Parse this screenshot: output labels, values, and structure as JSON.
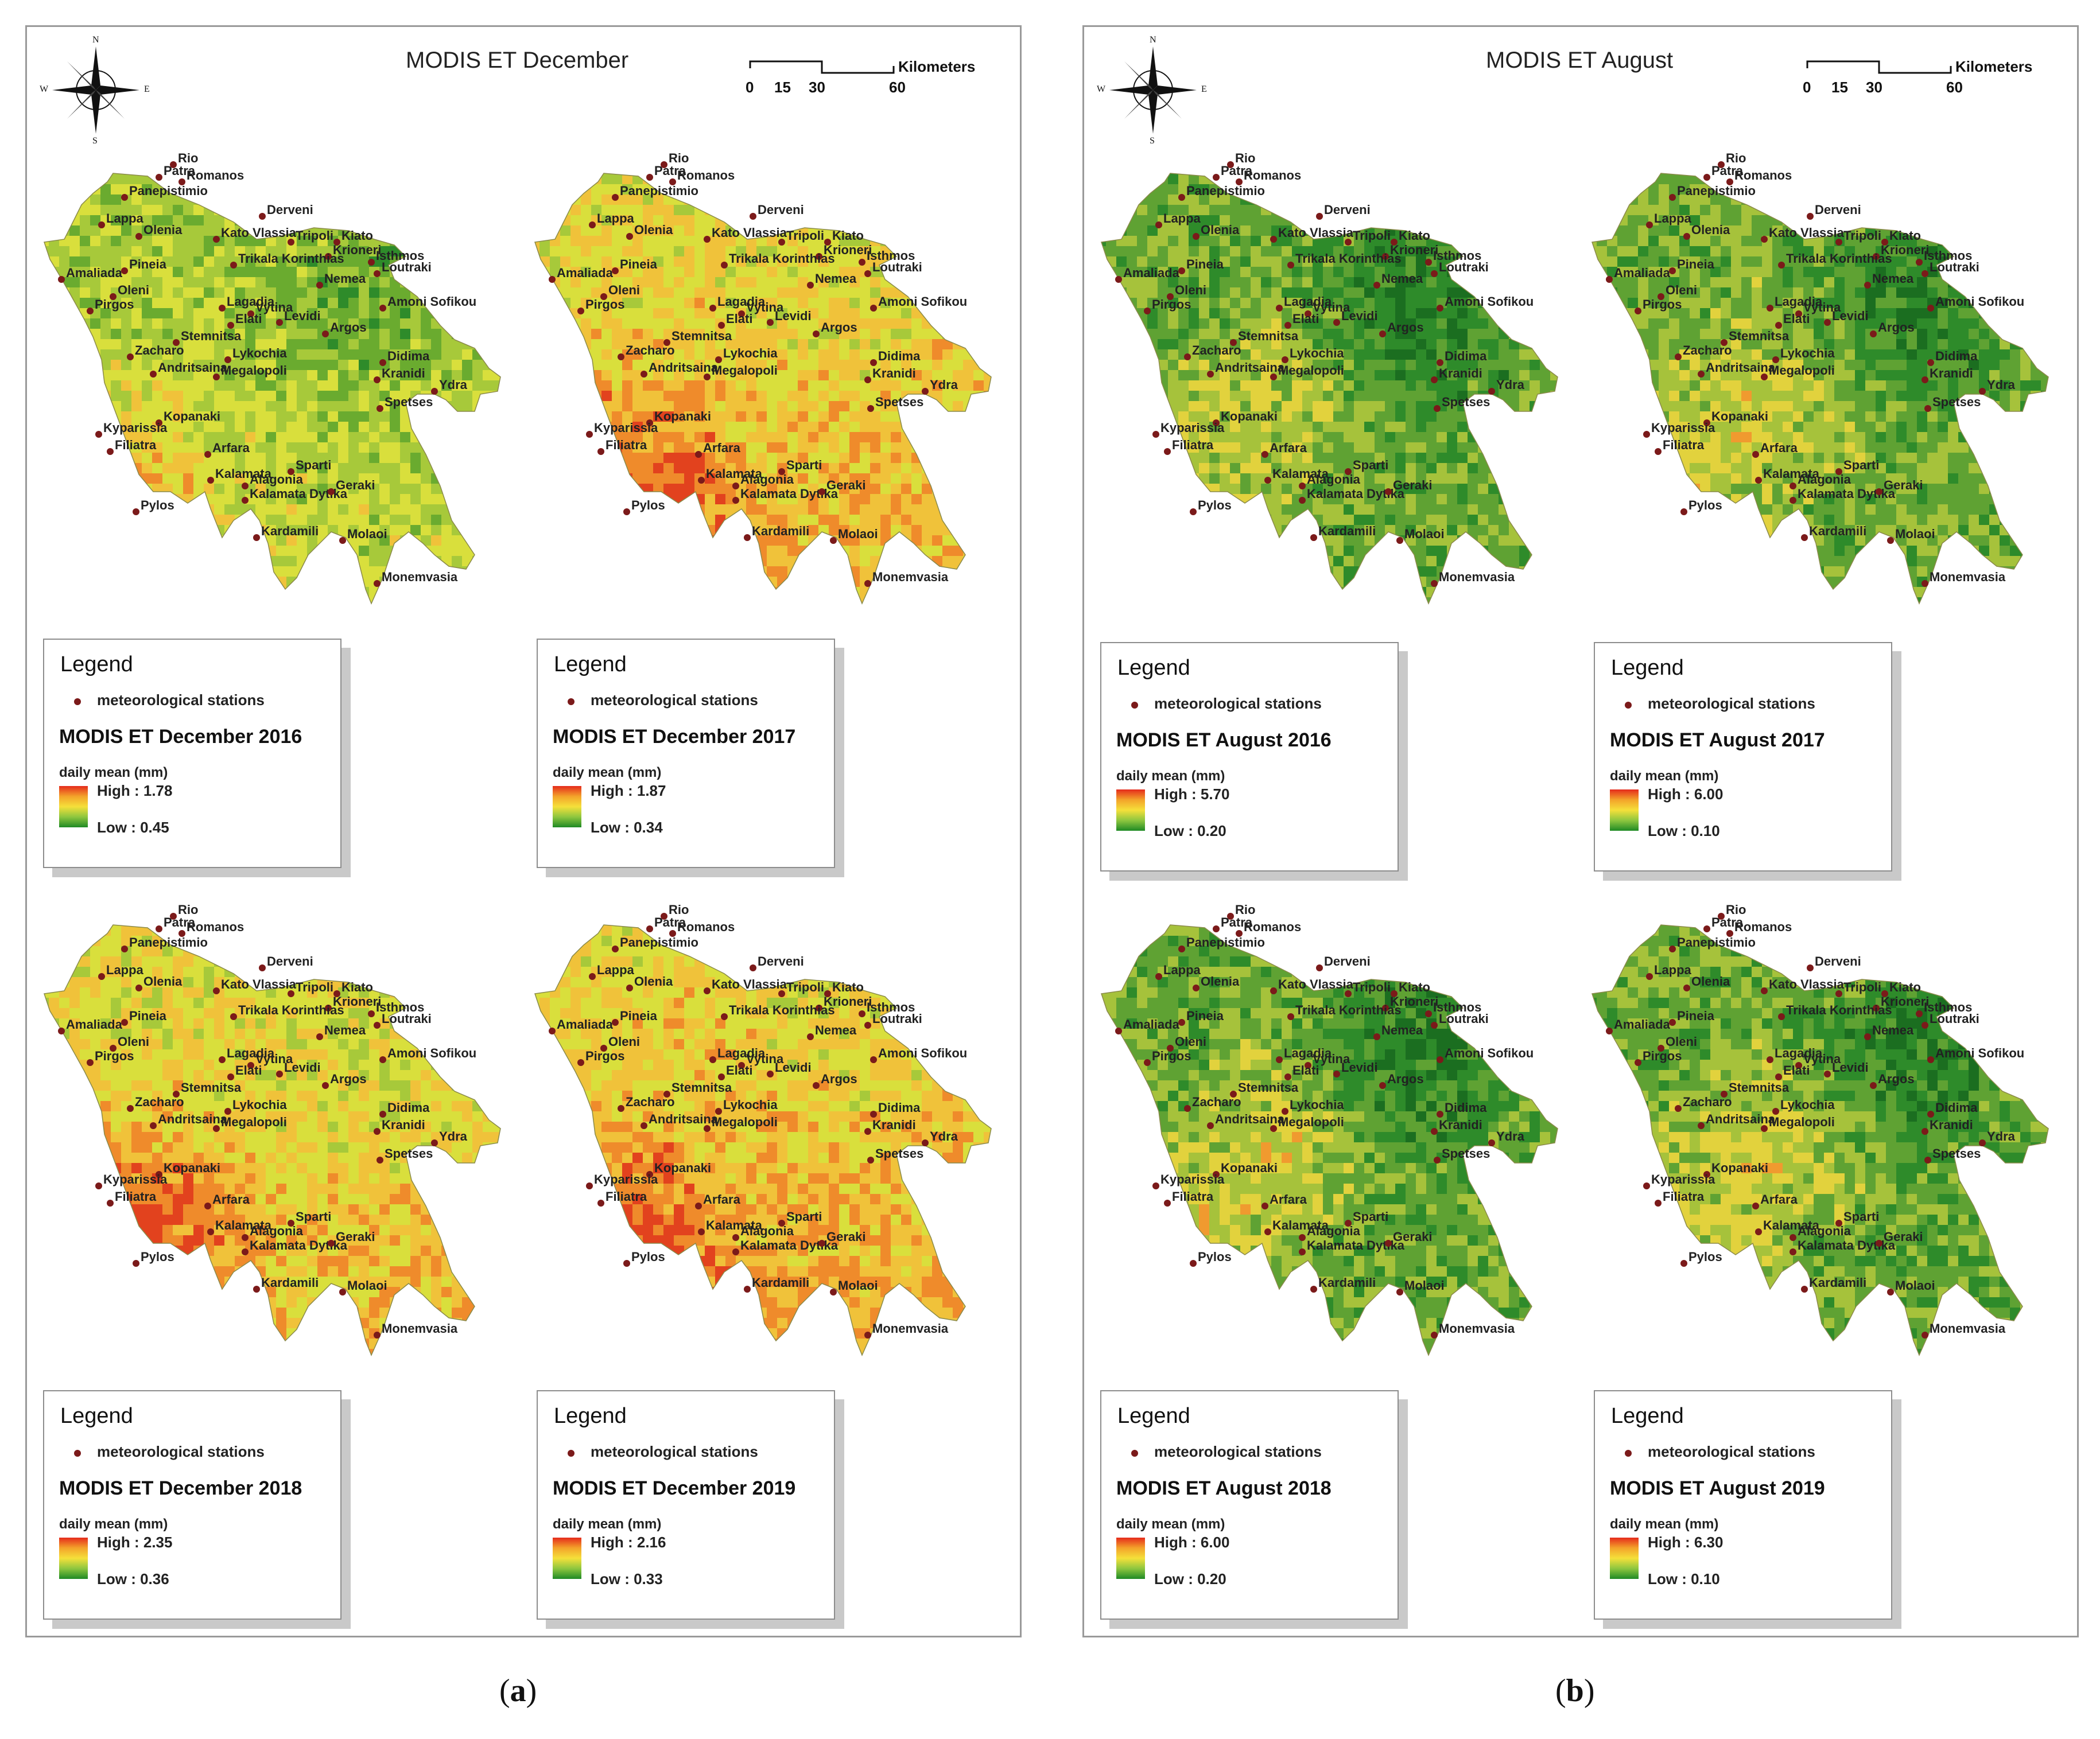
{
  "panel_a": {
    "title": "MODIS ET December",
    "caption_letter": "a",
    "maps": [
      {
        "year": "2016",
        "legend_title": "Legend",
        "station_label": "meteorological stations",
        "name": "MODIS ET December 2016",
        "unit": "daily mean (mm)",
        "high": "High : 1.78",
        "low": "Low : 0.45"
      },
      {
        "year": "2017",
        "legend_title": "Legend",
        "station_label": "meteorological stations",
        "name": "MODIS ET December 2017",
        "unit": "daily mean (mm)",
        "high": "High : 1.87",
        "low": "Low : 0.34"
      },
      {
        "year": "2018",
        "legend_title": "Legend",
        "station_label": "meteorological stations",
        "name": "MODIS ET December 2018",
        "unit": "daily mean (mm)",
        "high": "High : 2.35",
        "low": "Low : 0.36"
      },
      {
        "year": "2019",
        "legend_title": "Legend",
        "station_label": "meteorological stations",
        "name": "MODIS ET December 2019",
        "unit": "daily mean (mm)",
        "high": "High : 2.16",
        "low": "Low : 0.33"
      }
    ]
  },
  "panel_b": {
    "title": "MODIS ET August",
    "caption_letter": "b",
    "maps": [
      {
        "year": "2016",
        "legend_title": "Legend",
        "station_label": "meteorological stations",
        "name": "MODIS ET August 2016",
        "unit": "daily mean (mm)",
        "high": "High : 5.70",
        "low": "Low : 0.20"
      },
      {
        "year": "2017",
        "legend_title": "Legend",
        "station_label": "meteorological stations",
        "name": "MODIS ET August 2017",
        "unit": "daily mean (mm)",
        "high": "High : 6.00",
        "low": "Low : 0.10"
      },
      {
        "year": "2018",
        "legend_title": "Legend",
        "station_label": "meteorological stations",
        "name": "MODIS ET August 2018",
        "unit": "daily mean (mm)",
        "high": "High : 6.00",
        "low": "Low : 0.20"
      },
      {
        "year": "2019",
        "legend_title": "Legend",
        "station_label": "meteorological stations",
        "name": "MODIS ET August 2019",
        "unit": "daily mean (mm)",
        "high": "High : 6.30",
        "low": "Low : 0.10"
      }
    ]
  },
  "scale_bar": {
    "unit": "Kilometers",
    "ticks": [
      "0",
      "15",
      "30",
      "60"
    ]
  },
  "compass": {
    "n": "N",
    "s": "S",
    "e": "E",
    "w": "W"
  },
  "stations": [
    "Rio",
    "Patra",
    "Romanos",
    "Panepistimio",
    "Lappa",
    "Olenia",
    "Derveni",
    "Kato Vlassia",
    "Tripoli",
    "Kiato",
    "Krioneri",
    "Isthmos",
    "Loutraki",
    "Trikala Korinthias",
    "Pineia",
    "Amaliada",
    "Oleni",
    "Nemea",
    "Amoni Sofikou",
    "Pirgos",
    "Lagadia",
    "Vytina",
    "Levidi",
    "Elati",
    "Argos",
    "Stemnitsa",
    "Zacharo",
    "Lykochia",
    "Andritsaina",
    "Megalopoli",
    "Didima",
    "Kranidi",
    "Ydra",
    "Spetses",
    "Kopanaki",
    "Kyparissia",
    "Filiatra",
    "Arfara",
    "Sparti",
    "Kalamata",
    "Alagonia",
    "Kalamata Dytika",
    "Geraki",
    "Pylos",
    "Kardamili",
    "Molaoi",
    "Monemvasia"
  ],
  "colors": {
    "high": "#e52b1c",
    "mid": "#f5e03a",
    "low": "#1f8a25",
    "station": "#7b1a1a"
  }
}
